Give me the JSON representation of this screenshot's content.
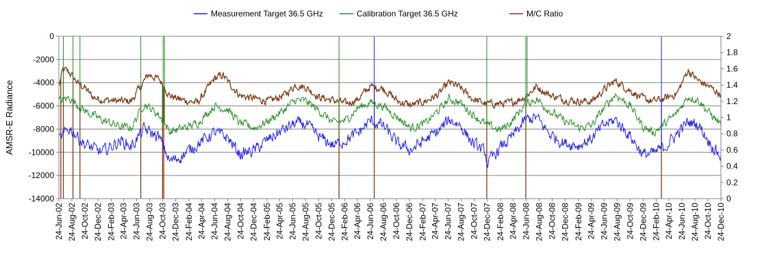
{
  "chart_data": {
    "type": "line",
    "title": "",
    "ylabel": "AMSR-E Radiance",
    "y2label": "",
    "xlabel": "",
    "ylim": [
      -14000,
      0
    ],
    "y2lim": [
      0,
      2
    ],
    "yticks": [
      "0",
      "-2000",
      "-4000",
      "-6000",
      "-8000",
      "-10000",
      "-12000",
      "-14000"
    ],
    "y2ticks": [
      "2",
      "1.8",
      "1.6",
      "1.4",
      "1.2",
      "1",
      "0.8",
      "0.6",
      "0.4",
      "0.2",
      "0"
    ],
    "x_tick_labels": [
      "24-Jun-02",
      "24-Aug-02",
      "24-Oct-02",
      "24-Dec-02",
      "24-Feb-03",
      "24-Apr-03",
      "24-Jun-03",
      "24-Aug-03",
      "24-Oct-03",
      "24-Dec-03",
      "24-Feb-04",
      "24-Apr-04",
      "24-Jun-04",
      "24-Aug-04",
      "24-Oct-04",
      "24-Dec-04",
      "24-Feb-05",
      "24-Apr-05",
      "24-Jun-05",
      "24-Aug-05",
      "24-Oct-05",
      "24-Dec-05",
      "24-Feb-06",
      "24-Apr-06",
      "24-Jun-06",
      "24-Aug-06",
      "24-Oct-06",
      "24-Dec-06",
      "24-Feb-07",
      "24-Apr-07",
      "24-Jun-07",
      "24-Aug-07",
      "24-Oct-07",
      "24-Dec-07",
      "24-Feb-08",
      "24-Apr-08",
      "24-Jun-08",
      "24-Aug-08",
      "24-Oct-08",
      "24-Dec-08",
      "24-Feb-09",
      "24-Apr-09",
      "24-Jun-09",
      "24-Aug-09",
      "24-Oct-09",
      "24-Dec-09",
      "24-Feb-10",
      "24-Apr-10",
      "24-Jun-10",
      "24-Aug-10",
      "24-Oct-10",
      "24-Dec-10"
    ],
    "x_tick_days": [
      0,
      61,
      122,
      183,
      245,
      304,
      365,
      426,
      487,
      548,
      610,
      670,
      731,
      792,
      853,
      914,
      976,
      1035,
      1096,
      1157,
      1218,
      1279,
      1341,
      1400,
      1461,
      1522,
      1583,
      1644,
      1706,
      1765,
      1826,
      1887,
      1948,
      2009,
      2071,
      2131,
      2192,
      2253,
      2314,
      2375,
      2437,
      2496,
      2557,
      2618,
      2679,
      2740,
      2802,
      2861,
      2922,
      2983,
      3044,
      3105
    ],
    "x_range_days": [
      0,
      3105
    ],
    "grid": true,
    "legend": "top",
    "series": [
      {
        "name": "Measurement Target 36.5 GHz",
        "axis": "left",
        "color": "#1f1fe6",
        "anchors": [
          [
            0,
            -9000
          ],
          [
            50,
            -7900
          ],
          [
            120,
            -9300
          ],
          [
            200,
            -10000
          ],
          [
            290,
            -9000
          ],
          [
            340,
            -9500
          ],
          [
            400,
            -8000
          ],
          [
            470,
            -8700
          ],
          [
            520,
            -10800
          ],
          [
            570,
            -10400
          ],
          [
            650,
            -9300
          ],
          [
            730,
            -8300
          ],
          [
            790,
            -8700
          ],
          [
            850,
            -10200
          ],
          [
            920,
            -9800
          ],
          [
            990,
            -8800
          ],
          [
            1060,
            -8000
          ],
          [
            1110,
            -7500
          ],
          [
            1160,
            -7600
          ],
          [
            1220,
            -8700
          ],
          [
            1290,
            -9400
          ],
          [
            1350,
            -8900
          ],
          [
            1400,
            -8400
          ],
          [
            1460,
            -7300
          ],
          [
            1520,
            -7700
          ],
          [
            1590,
            -9300
          ],
          [
            1650,
            -9800
          ],
          [
            1720,
            -8900
          ],
          [
            1780,
            -8200
          ],
          [
            1830,
            -7200
          ],
          [
            1880,
            -7600
          ],
          [
            1940,
            -9200
          ],
          [
            2000,
            -10000
          ],
          [
            2010,
            -11000
          ],
          [
            2070,
            -9600
          ],
          [
            2120,
            -8800
          ],
          [
            2190,
            -7200
          ],
          [
            2240,
            -7000
          ],
          [
            2300,
            -8400
          ],
          [
            2370,
            -9200
          ],
          [
            2440,
            -9400
          ],
          [
            2500,
            -8800
          ],
          [
            2560,
            -7600
          ],
          [
            2610,
            -7200
          ],
          [
            2680,
            -8600
          ],
          [
            2740,
            -10200
          ],
          [
            2790,
            -10100
          ],
          [
            2850,
            -9400
          ],
          [
            2900,
            -8400
          ],
          [
            2950,
            -7400
          ],
          [
            3000,
            -7600
          ],
          [
            3050,
            -9100
          ],
          [
            3105,
            -10400
          ]
        ],
        "spikes": [
          [
            1480,
            0
          ],
          [
            2826,
            0
          ]
        ]
      },
      {
        "name": "Calibration Target 36.5 GHz",
        "axis": "left",
        "color": "#228b22",
        "anchors": [
          [
            0,
            -5600
          ],
          [
            50,
            -5300
          ],
          [
            120,
            -6400
          ],
          [
            200,
            -7200
          ],
          [
            290,
            -7800
          ],
          [
            340,
            -7900
          ],
          [
            400,
            -5800
          ],
          [
            470,
            -6800
          ],
          [
            520,
            -8200
          ],
          [
            570,
            -8000
          ],
          [
            650,
            -7500
          ],
          [
            730,
            -6000
          ],
          [
            790,
            -6300
          ],
          [
            850,
            -7500
          ],
          [
            920,
            -7900
          ],
          [
            990,
            -7200
          ],
          [
            1060,
            -6300
          ],
          [
            1110,
            -5500
          ],
          [
            1160,
            -5600
          ],
          [
            1220,
            -6400
          ],
          [
            1290,
            -7500
          ],
          [
            1350,
            -7200
          ],
          [
            1400,
            -6200
          ],
          [
            1460,
            -5700
          ],
          [
            1520,
            -6000
          ],
          [
            1590,
            -7000
          ],
          [
            1650,
            -7900
          ],
          [
            1720,
            -7500
          ],
          [
            1780,
            -6400
          ],
          [
            1830,
            -5400
          ],
          [
            1880,
            -5700
          ],
          [
            1940,
            -6700
          ],
          [
            2000,
            -7600
          ],
          [
            2070,
            -8100
          ],
          [
            2120,
            -7400
          ],
          [
            2190,
            -5800
          ],
          [
            2240,
            -5400
          ],
          [
            2300,
            -6400
          ],
          [
            2370,
            -7300
          ],
          [
            2440,
            -7900
          ],
          [
            2500,
            -7700
          ],
          [
            2560,
            -6100
          ],
          [
            2610,
            -5000
          ],
          [
            2680,
            -6000
          ],
          [
            2740,
            -7800
          ],
          [
            2790,
            -8300
          ],
          [
            2850,
            -7400
          ],
          [
            2900,
            -6600
          ],
          [
            2950,
            -5200
          ],
          [
            3000,
            -5500
          ],
          [
            3050,
            -6600
          ],
          [
            3105,
            -7600
          ]
        ],
        "spikes": [
          [
            20,
            0
          ],
          [
            65,
            0
          ],
          [
            100,
            0
          ],
          [
            385,
            0
          ],
          [
            488,
            0
          ],
          [
            494,
            0
          ],
          [
            1314,
            0
          ],
          [
            2008,
            0
          ],
          [
            2190,
            0
          ],
          [
            2195,
            0
          ]
        ]
      },
      {
        "name": "M/C Ratio",
        "axis": "right",
        "color": "#7b3a11",
        "anchors": [
          [
            0,
            1.38
          ],
          [
            20,
            1.6
          ],
          [
            50,
            1.55
          ],
          [
            90,
            1.42
          ],
          [
            120,
            1.37
          ],
          [
            160,
            1.25
          ],
          [
            200,
            1.22
          ],
          [
            290,
            1.2
          ],
          [
            340,
            1.2
          ],
          [
            375,
            1.35
          ],
          [
            420,
            1.53
          ],
          [
            470,
            1.47
          ],
          [
            520,
            1.27
          ],
          [
            570,
            1.22
          ],
          [
            650,
            1.18
          ],
          [
            730,
            1.48
          ],
          [
            770,
            1.52
          ],
          [
            790,
            1.45
          ],
          [
            850,
            1.27
          ],
          [
            920,
            1.23
          ],
          [
            990,
            1.2
          ],
          [
            1060,
            1.28
          ],
          [
            1110,
            1.4
          ],
          [
            1160,
            1.37
          ],
          [
            1220,
            1.25
          ],
          [
            1290,
            1.21
          ],
          [
            1350,
            1.17
          ],
          [
            1400,
            1.22
          ],
          [
            1460,
            1.38
          ],
          [
            1520,
            1.36
          ],
          [
            1590,
            1.2
          ],
          [
            1650,
            1.15
          ],
          [
            1720,
            1.2
          ],
          [
            1780,
            1.28
          ],
          [
            1830,
            1.43
          ],
          [
            1880,
            1.37
          ],
          [
            1940,
            1.23
          ],
          [
            2000,
            1.17
          ],
          [
            2070,
            1.17
          ],
          [
            2120,
            1.18
          ],
          [
            2190,
            1.26
          ],
          [
            2240,
            1.38
          ],
          [
            2300,
            1.28
          ],
          [
            2370,
            1.22
          ],
          [
            2440,
            1.2
          ],
          [
            2500,
            1.2
          ],
          [
            2560,
            1.35
          ],
          [
            2610,
            1.45
          ],
          [
            2680,
            1.33
          ],
          [
            2740,
            1.23
          ],
          [
            2790,
            1.2
          ],
          [
            2850,
            1.24
          ],
          [
            2900,
            1.3
          ],
          [
            2950,
            1.58
          ],
          [
            3000,
            1.45
          ],
          [
            3050,
            1.38
          ],
          [
            3105,
            1.28
          ]
        ],
        "spikes": [
          [
            8,
            0
          ],
          [
            20,
            0
          ],
          [
            65,
            0
          ],
          [
            100,
            0
          ],
          [
            385,
            0
          ],
          [
            485,
            0
          ],
          [
            492,
            0
          ],
          [
            1314,
            0
          ],
          [
            1480,
            0
          ],
          [
            2008,
            0
          ],
          [
            2190,
            0
          ],
          [
            2826,
            0
          ]
        ]
      }
    ]
  }
}
